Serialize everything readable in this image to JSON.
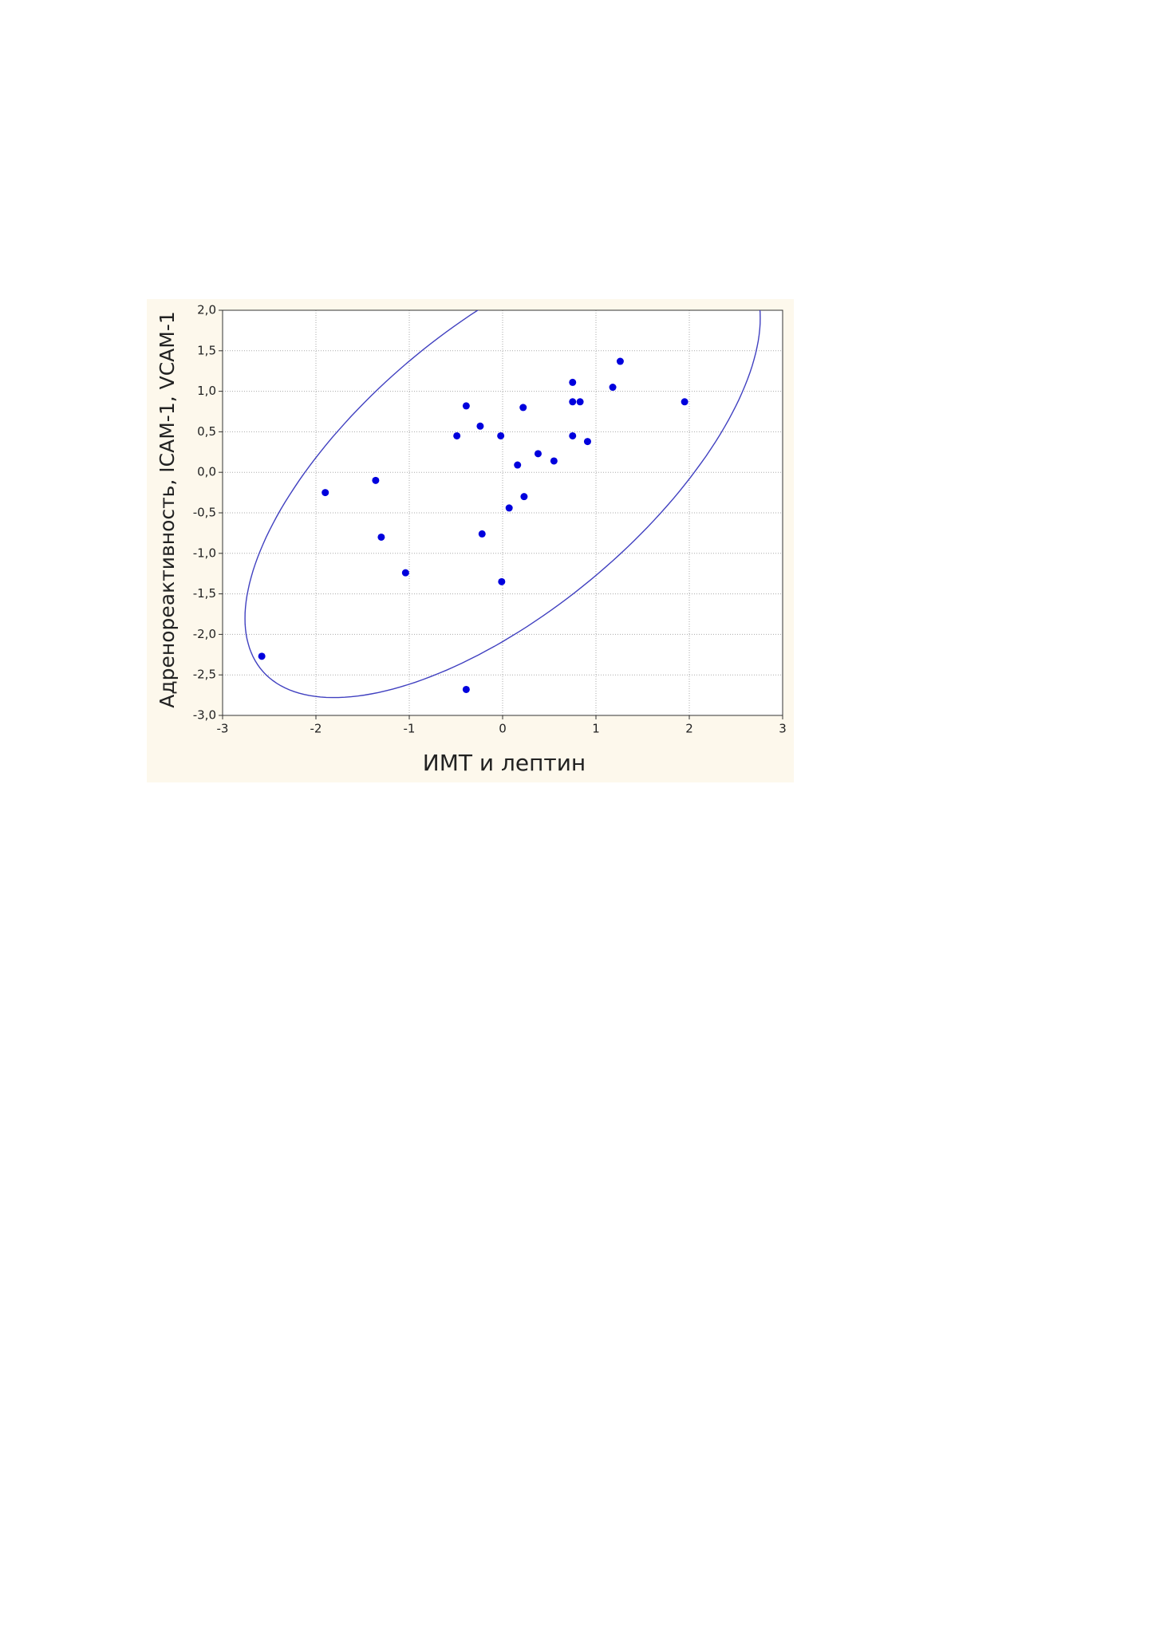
{
  "chart_data": {
    "type": "scatter",
    "x_label": "ИМТ и лептин",
    "y_label": "Адренореактивность, ICAM-1, VCAM-1",
    "color": "#0000dd",
    "grid": true,
    "xlim": [
      -3,
      3
    ],
    "ylim": [
      -3,
      2
    ],
    "xticks": [
      -3,
      -2,
      -1,
      0,
      1,
      2,
      3
    ],
    "yticks": [
      {
        "value": 2,
        "label": "2,0"
      },
      {
        "value": 1.5,
        "label": "1,5"
      },
      {
        "value": 1,
        "label": "1,0"
      },
      {
        "value": 0.5,
        "label": "0,5"
      },
      {
        "value": 0,
        "label": "0,0"
      },
      {
        "value": -0.5,
        "label": "-0,5"
      },
      {
        "value": -1,
        "label": "-1,0"
      },
      {
        "value": -1.5,
        "label": "-1,5"
      },
      {
        "value": -2,
        "label": "-2,0"
      },
      {
        "value": -2.5,
        "label": "-2,5"
      },
      {
        "value": -3,
        "label": "-3,0"
      }
    ],
    "x": [
      -2.58,
      -1.9,
      -1.36,
      -1.3,
      -1.04,
      -0.49,
      -0.39,
      -0.39,
      -0.24,
      -0.22,
      -0.02,
      -0.01,
      0.07,
      0.16,
      0.22,
      0.23,
      0.38,
      0.55,
      0.75,
      0.75,
      0.75,
      0.83,
      0.91,
      1.18,
      1.26,
      1.95
    ],
    "y": [
      -2.27,
      -0.25,
      -0.1,
      -0.8,
      -1.24,
      0.45,
      0.82,
      -2.68,
      0.57,
      -0.76,
      0.45,
      -1.35,
      -0.44,
      0.09,
      0.8,
      -0.3,
      0.23,
      0.14,
      1.11,
      0.87,
      0.45,
      0.87,
      0.38,
      1.05,
      1.37,
      0.87
    ]
  }
}
